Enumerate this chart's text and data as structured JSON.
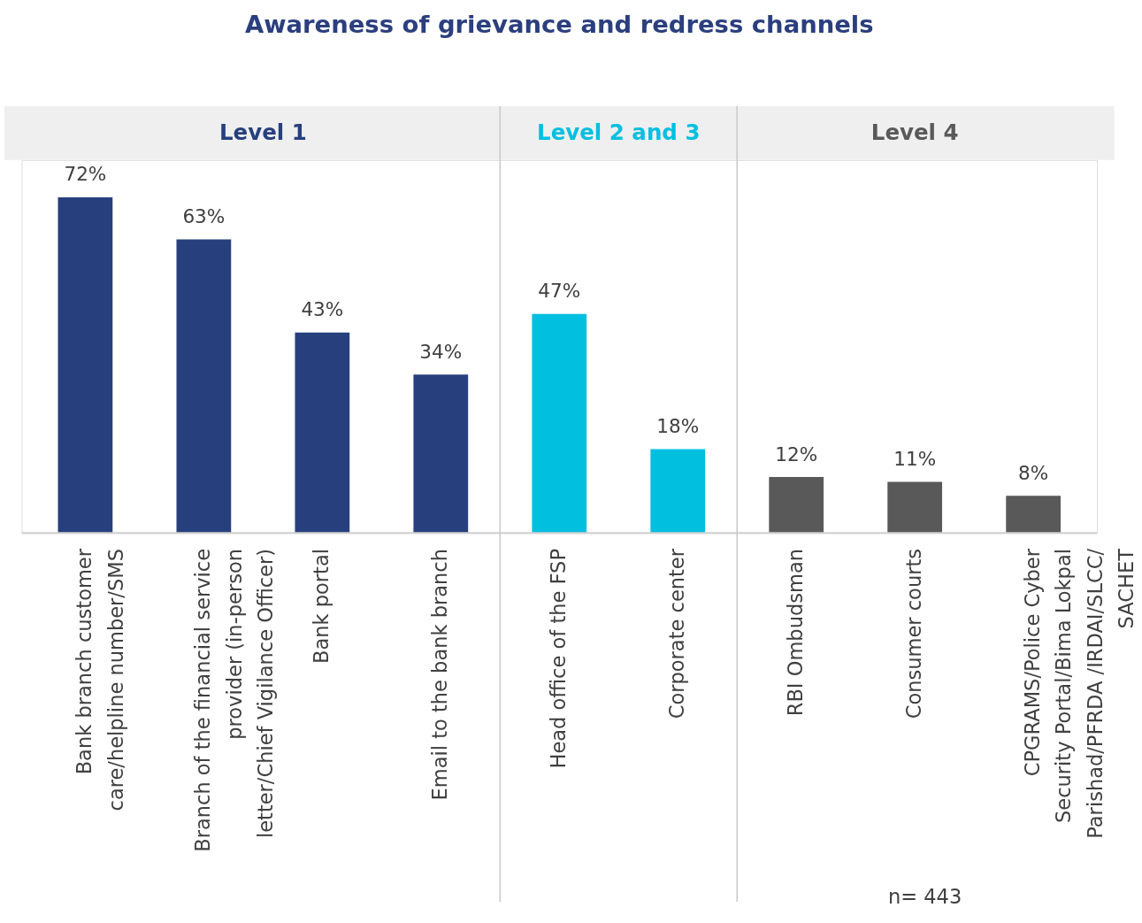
{
  "chart_data": {
    "type": "bar",
    "title": "Awareness of grievance and redress channels",
    "categories": [
      "Bank branch customer\ncare/helpline number/SMS",
      "Branch of the financial service\nprovider (in-person\nletter/Chief Vigilance Officer)",
      "Bank portal",
      "Email to the bank branch",
      "Head office of the FSP",
      "Corporate center",
      "RBI Ombudsman",
      "Consumer courts",
      "CPGRAMS/Police Cyber\nSecurity Portal/Bima Lokpal\nParishad/PFRDA /IRDAI/SLCC/\nSACHET"
    ],
    "series": [
      {
        "name": "Level 1",
        "color": "#27407d",
        "values": [
          72,
          63,
          43,
          34,
          null,
          null,
          null,
          null,
          null
        ],
        "value_labels": [
          "72%",
          "63%",
          "43%",
          "34%",
          null,
          null,
          null,
          null,
          null
        ]
      },
      {
        "name": "Level 2 and 3",
        "color": "#00bfdf",
        "values": [
          null,
          null,
          null,
          null,
          47,
          18,
          null,
          null,
          null
        ],
        "value_labels": [
          null,
          null,
          null,
          null,
          "47%",
          "18%",
          null,
          null,
          null
        ]
      },
      {
        "name": "Level 4",
        "color": "#595959",
        "values": [
          null,
          null,
          null,
          null,
          null,
          null,
          12,
          11,
          8
        ],
        "value_labels": [
          null,
          null,
          null,
          null,
          null,
          null,
          "12%",
          "11%",
          "8%"
        ]
      }
    ],
    "annotations": [
      "n= 443"
    ]
  }
}
